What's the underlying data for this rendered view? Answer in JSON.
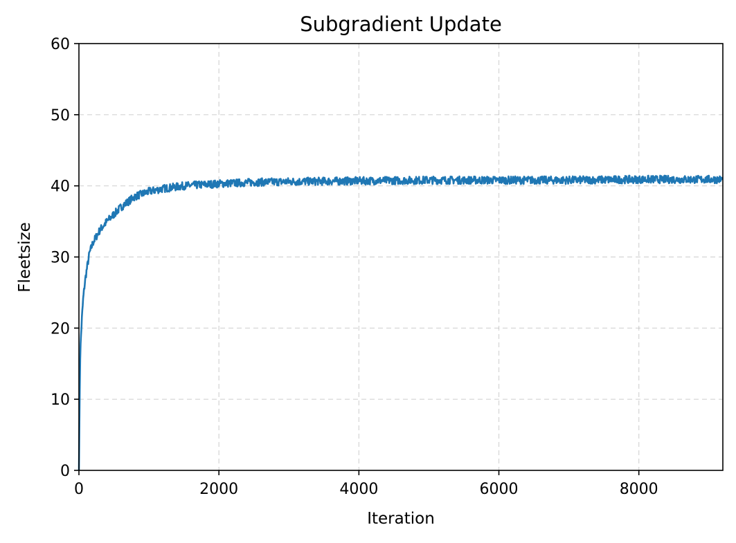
{
  "chart_data": {
    "type": "line",
    "title": "Subgradient Update",
    "xlabel": "Iteration",
    "ylabel": "Fleetsize",
    "xlim": [
      0,
      9200
    ],
    "ylim": [
      0,
      60
    ],
    "xticks": [
      0,
      2000,
      4000,
      6000,
      8000
    ],
    "yticks": [
      0,
      10,
      20,
      30,
      40,
      50,
      60
    ],
    "grid": true,
    "color": "#1f77b4",
    "series": [
      {
        "x": [
          0,
          10,
          20,
          40,
          60,
          80,
          100,
          150,
          200,
          300,
          400,
          500,
          600,
          800,
          1000,
          1200,
          1500,
          2000,
          2500,
          3000,
          4000,
          5000,
          6000,
          7000,
          8000,
          9000,
          9200
        ],
        "y": [
          0,
          10,
          17,
          21,
          24,
          26,
          27.5,
          30.5,
          32,
          33.8,
          35,
          36,
          37,
          38.5,
          39.2,
          39.6,
          40,
          40.3,
          40.5,
          40.6,
          40.7,
          40.8,
          40.8,
          40.8,
          40.9,
          40.9,
          40.9
        ]
      }
    ]
  }
}
